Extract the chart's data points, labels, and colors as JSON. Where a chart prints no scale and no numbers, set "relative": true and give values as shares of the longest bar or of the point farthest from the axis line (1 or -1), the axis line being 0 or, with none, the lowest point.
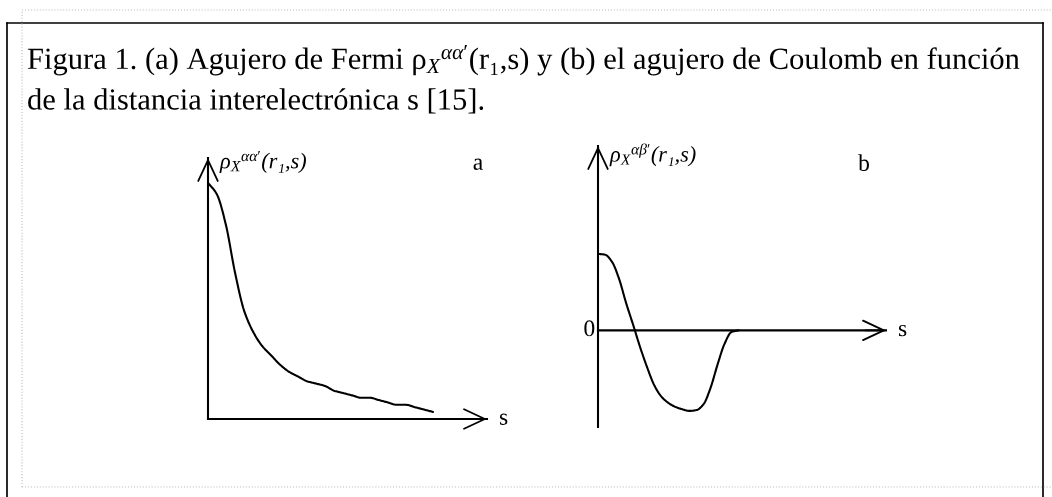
{
  "chart_data": [
    {
      "type": "line",
      "title": "a",
      "xlabel": "s",
      "ylabel": "ρ$_{X}$$^{αα′}$(r₁,s)",
      "relative": true,
      "annotations": [
        "Figura 1. (a) Agujero de Fermi ρ$_{X}$$^{αα′}$(r₁,s) y (b) el agujero de Coulomb en función de la distancia interelectrónica s [15]."
      ],
      "categories": [
        null,
        null,
        null,
        null,
        null,
        null,
        null,
        null,
        null,
        null,
        null,
        null,
        null,
        null,
        null,
        null,
        null,
        null,
        null,
        null,
        null,
        null,
        null,
        null,
        null,
        null,
        null,
        null,
        null,
        null,
        null,
        null
      ],
      "series": [
        {
          "color": "#000000",
          "values": [
            1,
            0.95,
            0.82,
            0.62,
            0.46,
            0.37,
            0.31,
            0.27,
            0.23,
            0.2,
            0.18,
            0.16,
            0.15,
            0.14,
            0.12,
            0.11,
            0.1,
            0.09,
            0.09,
            0.08,
            0.07,
            0.06,
            0.06,
            0.05,
            0.04,
            0.03,
            null,
            null,
            null,
            null,
            null,
            null
          ]
        }
      ]
    },
    {
      "type": "line",
      "title": "b",
      "xlabel": "s",
      "ylabel": "ρ$_{X}$$^{αβ′}$(r₁,s)",
      "relative": true,
      "annotations": [
        "0"
      ],
      "categories": [
        null,
        null,
        null,
        null,
        null,
        null,
        null,
        null,
        null,
        null,
        null,
        null,
        null,
        null,
        null,
        null,
        null,
        null,
        null,
        null,
        null,
        null,
        null,
        null,
        null,
        null,
        null,
        null,
        null,
        null,
        null,
        null,
        null,
        null,
        null,
        null,
        null,
        null,
        null,
        null,
        null,
        null
      ],
      "series": [
        {
          "color": "#000000",
          "values": [
            0.95,
            0.94,
            0.85,
            0.64,
            0.34,
            0.07,
            -0.21,
            -0.46,
            -0.68,
            -0.82,
            -0.9,
            -0.95,
            -0.98,
            -1,
            -0.99,
            -0.92,
            -0.72,
            -0.43,
            -0.17,
            -0.02,
            0,
            null,
            null,
            null,
            null,
            null,
            null,
            null,
            null,
            null,
            null,
            null,
            null,
            null,
            null,
            null,
            null,
            null,
            null,
            null,
            null,
            null
          ]
        }
      ]
    }
  ]
}
